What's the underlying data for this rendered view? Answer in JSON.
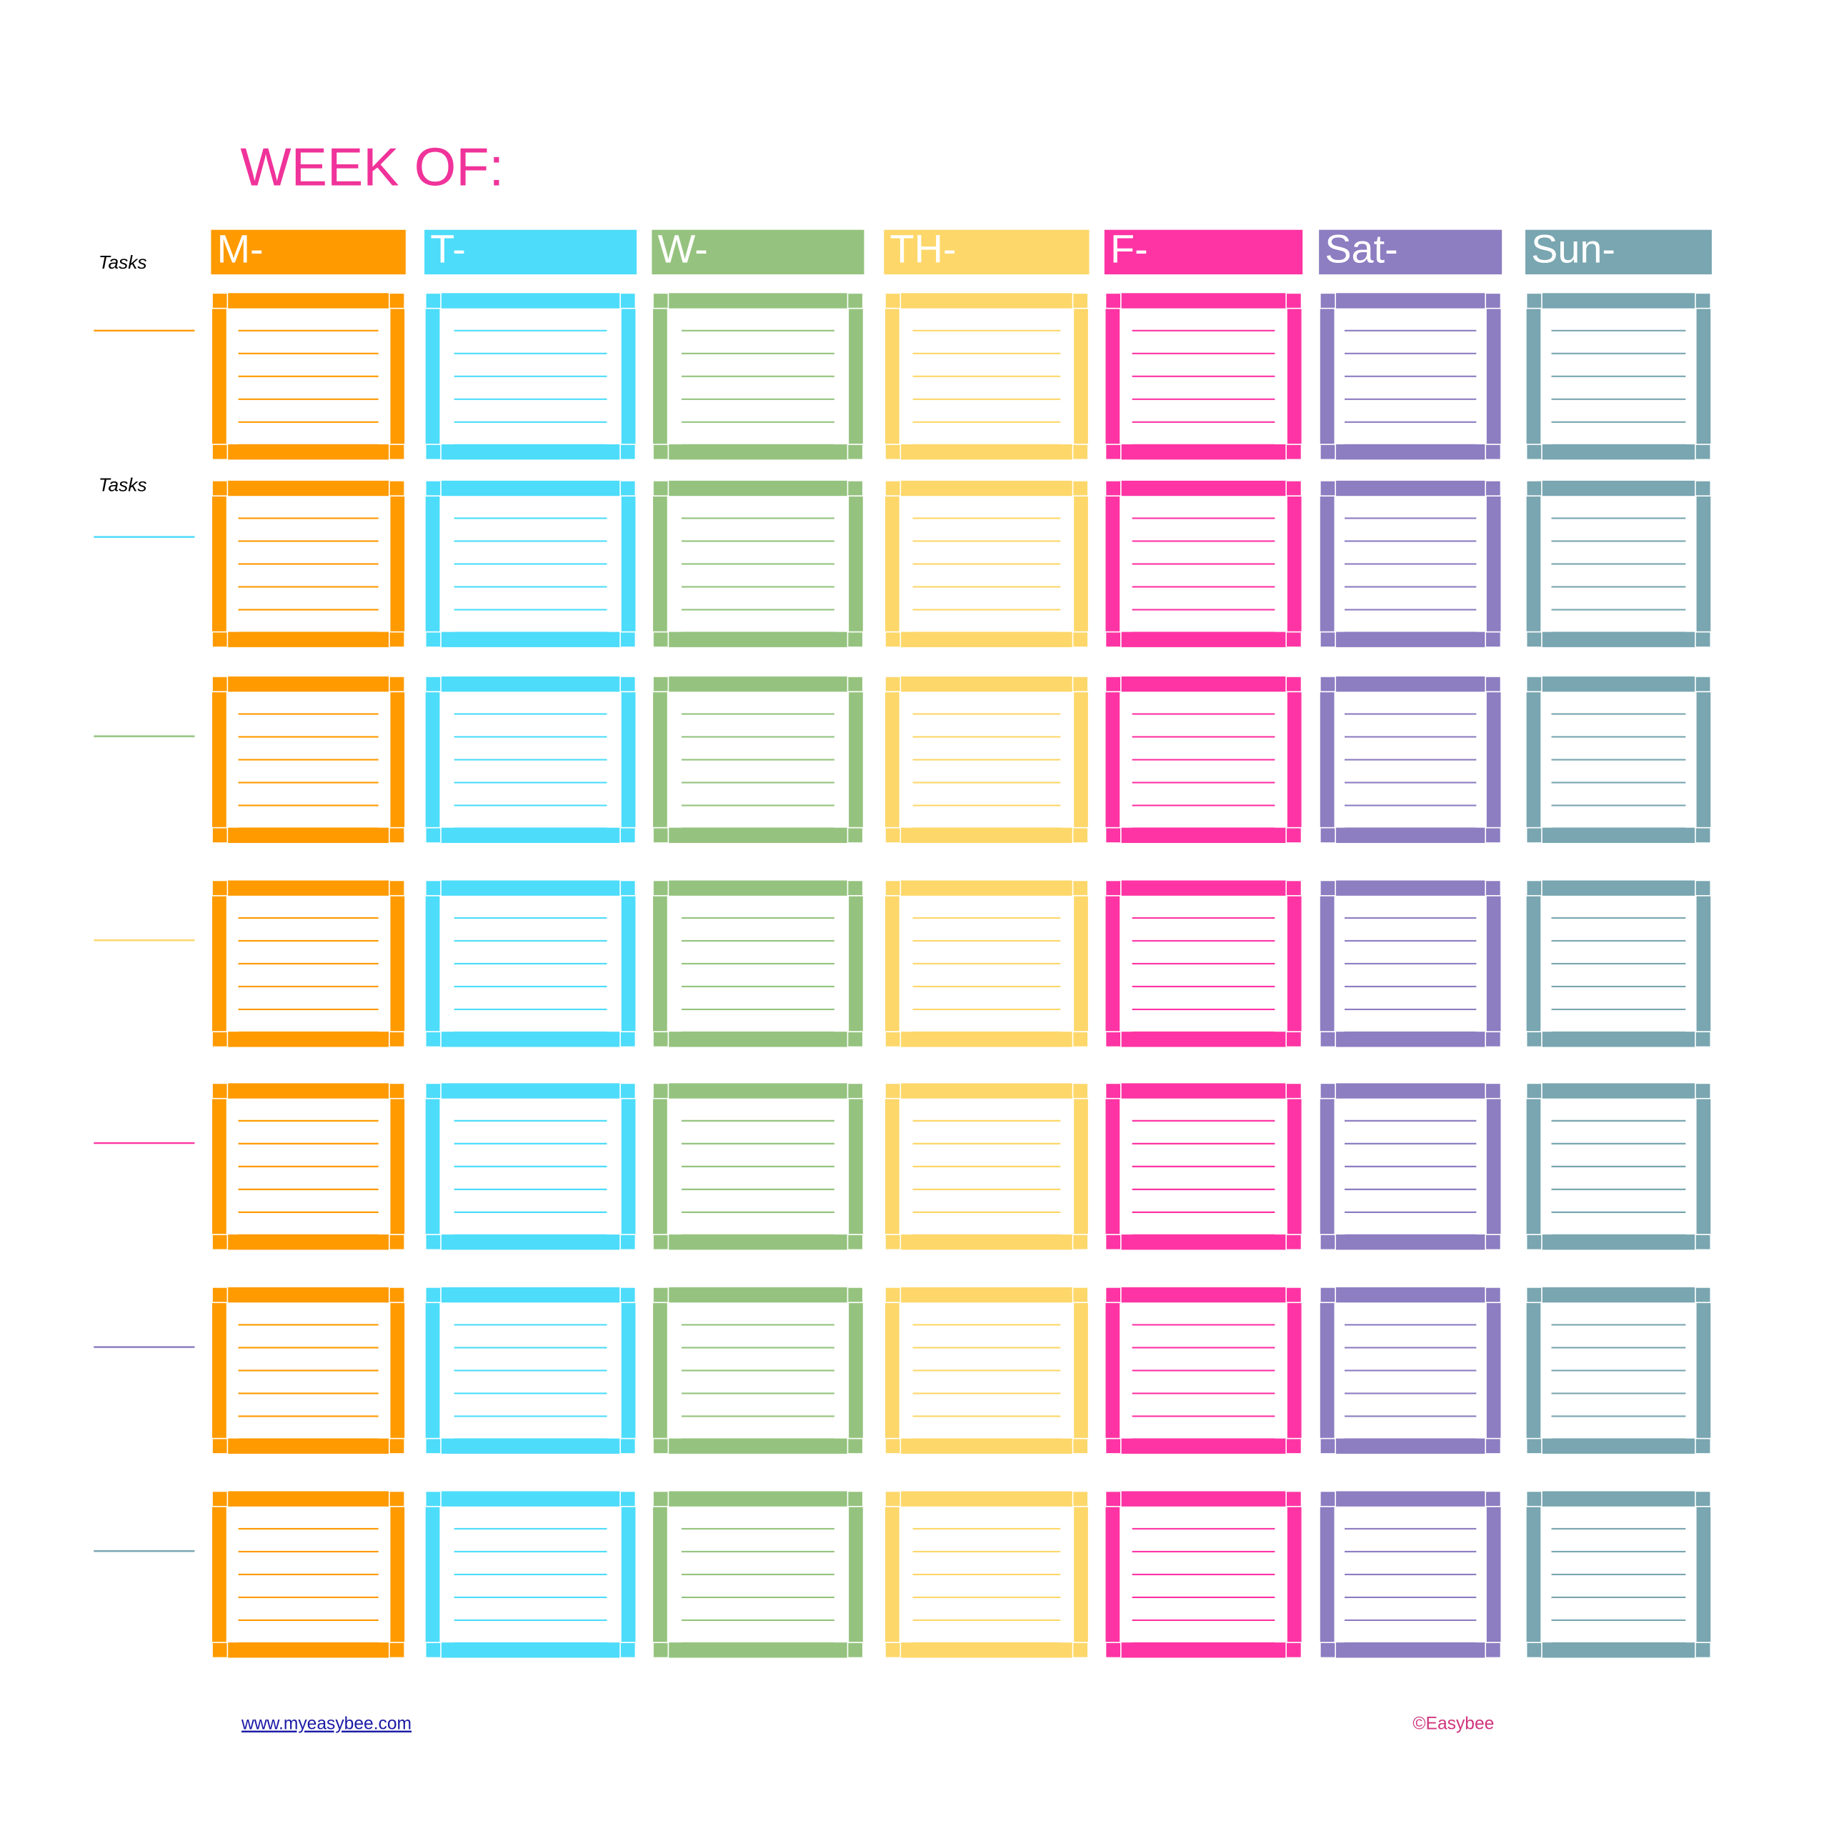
{
  "header": {
    "title": "WEEK OF:"
  },
  "days": [
    {
      "label": "M-",
      "color": "#ff9a00"
    },
    {
      "label": "T-",
      "color": "#4ddcfa"
    },
    {
      "label": "W-",
      "color": "#95c37f"
    },
    {
      "label": "TH-",
      "color": "#fdd76a"
    },
    {
      "label": "F-",
      "color": "#fe34a4"
    },
    {
      "label": "Sat-",
      "color": "#8d7dc1"
    },
    {
      "label": "Sun-",
      "color": "#79a6b0"
    }
  ],
  "row_labels": [
    "Tasks",
    "Tasks"
  ],
  "footer": {
    "link": "www.myeasybee.com",
    "copyright": "©Easybee"
  }
}
